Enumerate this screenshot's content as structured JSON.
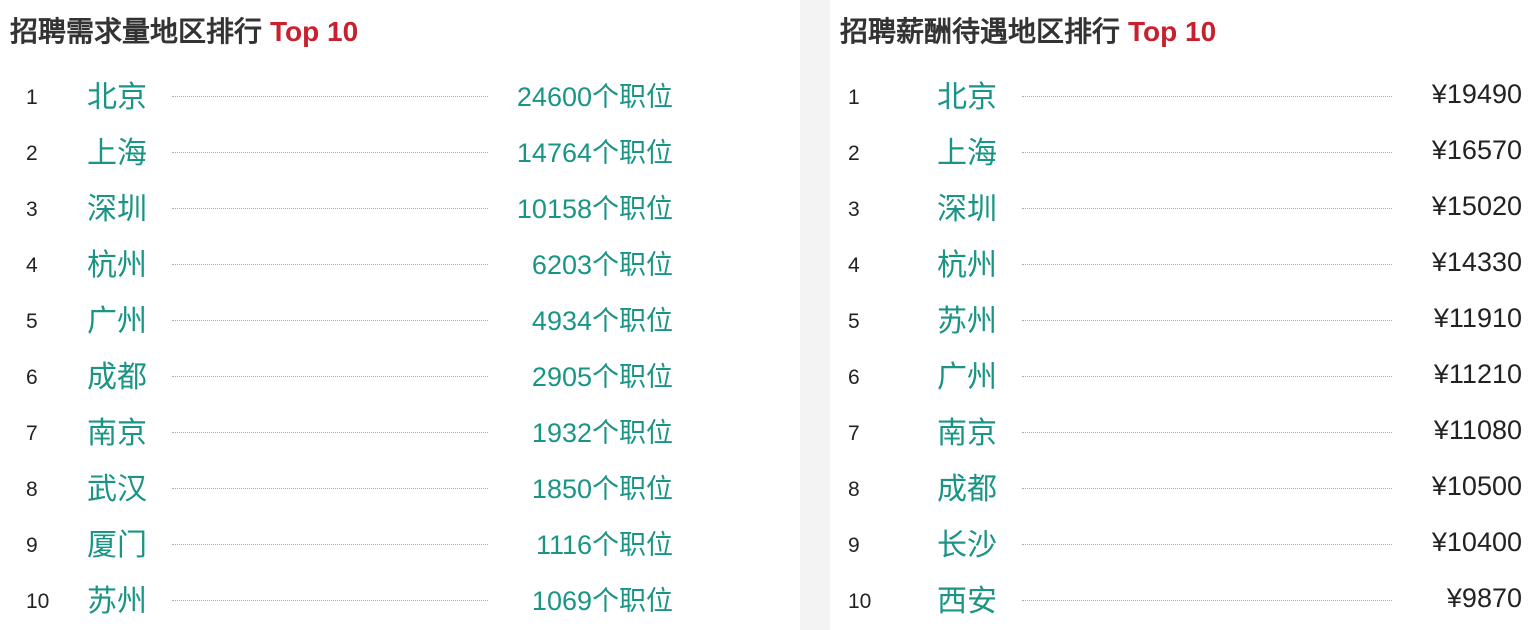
{
  "demand": {
    "title": "招聘需求量地区排行",
    "badge": "Top 10",
    "rows": [
      {
        "rank": "1",
        "city": "北京",
        "value": "24600个职位"
      },
      {
        "rank": "2",
        "city": "上海",
        "value": "14764个职位"
      },
      {
        "rank": "3",
        "city": "深圳",
        "value": "10158个职位"
      },
      {
        "rank": "4",
        "city": "杭州",
        "value": "6203个职位"
      },
      {
        "rank": "5",
        "city": "广州",
        "value": "4934个职位"
      },
      {
        "rank": "6",
        "city": "成都",
        "value": "2905个职位"
      },
      {
        "rank": "7",
        "city": "南京",
        "value": "1932个职位"
      },
      {
        "rank": "8",
        "city": "武汉",
        "value": "1850个职位"
      },
      {
        "rank": "9",
        "city": "厦门",
        "value": "1116个职位"
      },
      {
        "rank": "10",
        "city": "苏州",
        "value": "1069个职位"
      }
    ]
  },
  "salary": {
    "title": "招聘薪酬待遇地区排行",
    "badge": "Top 10",
    "rows": [
      {
        "rank": "1",
        "city": "北京",
        "value": "¥19490"
      },
      {
        "rank": "2",
        "city": "上海",
        "value": "¥16570"
      },
      {
        "rank": "3",
        "city": "深圳",
        "value": "¥15020"
      },
      {
        "rank": "4",
        "city": "杭州",
        "value": "¥14330"
      },
      {
        "rank": "5",
        "city": "苏州",
        "value": "¥11910"
      },
      {
        "rank": "6",
        "city": "广州",
        "value": "¥11210"
      },
      {
        "rank": "7",
        "city": "南京",
        "value": "¥11080"
      },
      {
        "rank": "8",
        "city": "成都",
        "value": "¥10500"
      },
      {
        "rank": "9",
        "city": "长沙",
        "value": "¥10400"
      },
      {
        "rank": "10",
        "city": "西安",
        "value": "¥9870"
      }
    ]
  },
  "colors": {
    "accent": "#1a9585",
    "badge": "#c8202e"
  }
}
